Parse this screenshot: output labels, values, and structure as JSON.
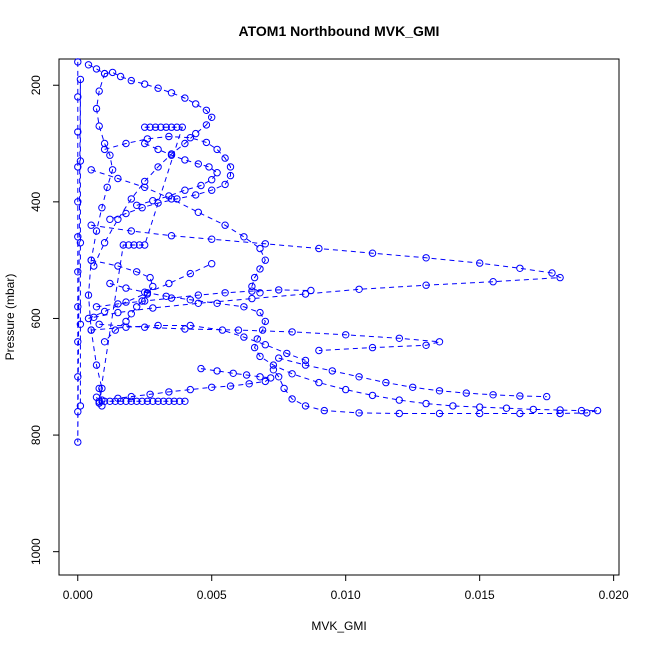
{
  "chart_data": {
    "type": "scatter",
    "title": "ATOM1 Northbound MVK_GMI",
    "xlabel": "MVK_GMI",
    "ylabel": "Pressure (mbar)",
    "xlim": [
      -0.0007,
      0.0202
    ],
    "ylim": [
      1040,
      155
    ],
    "y_reversed": true,
    "grid": false,
    "legend": "none",
    "color": "#0000ff",
    "x_ticks": [
      0.0,
      0.005,
      0.01,
      0.015,
      0.02
    ],
    "x_tick_labels": [
      "0.000",
      "0.005",
      "0.010",
      "0.015",
      "0.020"
    ],
    "y_ticks": [
      200,
      400,
      600,
      800,
      1000
    ],
    "y_tick_labels": [
      "200",
      "400",
      "600",
      "800",
      "1000"
    ],
    "series": [
      {
        "points": [
          [
            0.0,
            160
          ],
          [
            0.0,
            220
          ],
          [
            0.0,
            280
          ],
          [
            0.0,
            340
          ],
          [
            0.0,
            400
          ],
          [
            0.0,
            460
          ],
          [
            0.0,
            520
          ],
          [
            0.0,
            580
          ],
          [
            0.0,
            640
          ],
          [
            0.0,
            700
          ],
          [
            0.0,
            760
          ],
          [
            0.0,
            812
          ],
          [
            0.0001,
            190
          ],
          [
            0.0001,
            330
          ],
          [
            0.0001,
            470
          ],
          [
            0.0001,
            610
          ],
          [
            0.0001,
            750
          ]
        ]
      },
      {
        "points": [
          [
            0.0004,
            165
          ],
          [
            0.0007,
            172
          ],
          [
            0.001,
            180
          ],
          [
            0.0013,
            178
          ],
          [
            0.0016,
            185
          ],
          [
            0.002,
            192
          ],
          [
            0.0025,
            198
          ],
          [
            0.003,
            205
          ],
          [
            0.0035,
            213
          ],
          [
            0.004,
            222
          ],
          [
            0.0044,
            232
          ],
          [
            0.0048,
            243
          ],
          [
            0.005,
            255
          ],
          [
            0.0048,
            268
          ],
          [
            0.0044,
            283
          ],
          [
            0.004,
            300
          ],
          [
            0.0035,
            318
          ],
          [
            0.003,
            340
          ],
          [
            0.0025,
            365
          ],
          [
            0.002,
            395
          ],
          [
            0.0015,
            430
          ],
          [
            0.001,
            470
          ],
          [
            0.0006,
            510
          ]
        ]
      },
      {
        "points": [
          [
            0.001,
            180
          ],
          [
            0.0008,
            210
          ],
          [
            0.0007,
            240
          ],
          [
            0.0008,
            270
          ],
          [
            0.001,
            300
          ],
          [
            0.0012,
            320
          ],
          [
            0.0013,
            345
          ],
          [
            0.0011,
            375
          ],
          [
            0.0009,
            410
          ],
          [
            0.0007,
            450
          ],
          [
            0.0005,
            500
          ],
          [
            0.0004,
            560
          ],
          [
            0.0005,
            620
          ],
          [
            0.0007,
            680
          ],
          [
            0.0009,
            720
          ],
          [
            0.0008,
            745
          ]
        ]
      },
      {
        "points": [
          [
            0.0025,
            272
          ],
          [
            0.0027,
            272
          ],
          [
            0.0029,
            272
          ],
          [
            0.0031,
            272
          ],
          [
            0.0033,
            272
          ],
          [
            0.0035,
            272
          ],
          [
            0.0037,
            272
          ],
          [
            0.0039,
            272
          ],
          [
            0.0025,
            474
          ],
          [
            0.0023,
            474
          ],
          [
            0.0021,
            474
          ],
          [
            0.0019,
            474
          ],
          [
            0.0017,
            474
          ],
          [
            0.0008,
            742
          ],
          [
            0.001,
            742
          ],
          [
            0.0012,
            742
          ],
          [
            0.0014,
            742
          ],
          [
            0.0016,
            742
          ],
          [
            0.0018,
            742
          ],
          [
            0.002,
            742
          ],
          [
            0.0022,
            742
          ],
          [
            0.0024,
            742
          ],
          [
            0.0026,
            742
          ],
          [
            0.0028,
            742
          ],
          [
            0.003,
            742
          ],
          [
            0.0032,
            742
          ],
          [
            0.0034,
            742
          ],
          [
            0.0036,
            742
          ],
          [
            0.0038,
            742
          ],
          [
            0.004,
            742
          ]
        ]
      },
      {
        "points": [
          [
            0.001,
            310
          ],
          [
            0.0018,
            300
          ],
          [
            0.0026,
            292
          ],
          [
            0.0034,
            288
          ],
          [
            0.0042,
            290
          ],
          [
            0.0048,
            298
          ],
          [
            0.0052,
            310
          ],
          [
            0.0055,
            325
          ],
          [
            0.0057,
            340
          ],
          [
            0.0057,
            355
          ],
          [
            0.0055,
            370
          ],
          [
            0.005,
            380
          ],
          [
            0.0044,
            388
          ],
          [
            0.0037,
            395
          ],
          [
            0.003,
            402
          ],
          [
            0.0024,
            410
          ],
          [
            0.0018,
            420
          ],
          [
            0.0012,
            430
          ]
        ]
      },
      {
        "points": [
          [
            0.0005,
            440
          ],
          [
            0.002,
            450
          ],
          [
            0.0035,
            458
          ],
          [
            0.005,
            464
          ],
          [
            0.007,
            472
          ],
          [
            0.009,
            480
          ],
          [
            0.011,
            488
          ],
          [
            0.013,
            496
          ],
          [
            0.015,
            505
          ],
          [
            0.0165,
            514
          ],
          [
            0.0177,
            522
          ],
          [
            0.018,
            530
          ],
          [
            0.0155,
            537
          ],
          [
            0.013,
            543
          ],
          [
            0.0105,
            550
          ],
          [
            0.0085,
            558
          ],
          [
            0.0065,
            566
          ],
          [
            0.0045,
            574
          ],
          [
            0.0028,
            582
          ],
          [
            0.0015,
            590
          ],
          [
            0.0006,
            598
          ]
        ]
      },
      {
        "points": [
          [
            0.0008,
            610
          ],
          [
            0.0025,
            615
          ],
          [
            0.004,
            618
          ],
          [
            0.006,
            620
          ],
          [
            0.008,
            623
          ],
          [
            0.01,
            628
          ],
          [
            0.012,
            634
          ],
          [
            0.0135,
            640
          ],
          [
            0.013,
            646
          ],
          [
            0.011,
            650
          ],
          [
            0.009,
            655
          ]
        ]
      },
      {
        "points": [
          [
            0.0012,
            540
          ],
          [
            0.0018,
            548
          ],
          [
            0.0025,
            555
          ],
          [
            0.0033,
            562
          ],
          [
            0.0042,
            568
          ],
          [
            0.0052,
            574
          ],
          [
            0.0062,
            580
          ],
          [
            0.0068,
            590
          ],
          [
            0.007,
            605
          ],
          [
            0.0069,
            620
          ],
          [
            0.0067,
            635
          ],
          [
            0.0066,
            650
          ],
          [
            0.0068,
            665
          ],
          [
            0.0073,
            680
          ],
          [
            0.008,
            695
          ],
          [
            0.009,
            710
          ],
          [
            0.01,
            722
          ],
          [
            0.011,
            732
          ],
          [
            0.012,
            740
          ],
          [
            0.013,
            746
          ],
          [
            0.014,
            750
          ],
          [
            0.015,
            752
          ],
          [
            0.016,
            754
          ],
          [
            0.017,
            756
          ],
          [
            0.018,
            757
          ],
          [
            0.0188,
            758
          ],
          [
            0.0194,
            758
          ],
          [
            0.019,
            762
          ],
          [
            0.018,
            763
          ],
          [
            0.0165,
            763
          ],
          [
            0.015,
            763
          ],
          [
            0.0135,
            763
          ],
          [
            0.012,
            763
          ],
          [
            0.0105,
            762
          ],
          [
            0.0092,
            758
          ],
          [
            0.0085,
            750
          ],
          [
            0.008,
            738
          ],
          [
            0.0077,
            720
          ],
          [
            0.0075,
            700
          ],
          [
            0.0073,
            688
          ]
        ]
      },
      {
        "points": [
          [
            0.0007,
            580
          ],
          [
            0.0015,
            575
          ],
          [
            0.0025,
            570
          ],
          [
            0.0035,
            565
          ],
          [
            0.0045,
            560
          ],
          [
            0.0055,
            556
          ],
          [
            0.0065,
            553
          ],
          [
            0.0075,
            551
          ],
          [
            0.0087,
            552
          ]
        ]
      },
      {
        "points": [
          [
            0.0046,
            686
          ],
          [
            0.0052,
            690
          ],
          [
            0.0058,
            694
          ],
          [
            0.0063,
            697
          ],
          [
            0.0068,
            700
          ],
          [
            0.0072,
            702
          ],
          [
            0.007,
            708
          ],
          [
            0.0064,
            712
          ],
          [
            0.0057,
            716
          ],
          [
            0.005,
            718
          ],
          [
            0.0042,
            722
          ],
          [
            0.0034,
            726
          ],
          [
            0.0027,
            730
          ],
          [
            0.002,
            734
          ],
          [
            0.0015,
            737
          ]
        ]
      },
      {
        "points": [
          [
            0.0075,
            668
          ],
          [
            0.0085,
            680
          ],
          [
            0.0095,
            690
          ],
          [
            0.0105,
            700
          ],
          [
            0.0115,
            710
          ],
          [
            0.0125,
            718
          ],
          [
            0.0135,
            724
          ],
          [
            0.0145,
            728
          ],
          [
            0.0155,
            731
          ],
          [
            0.0165,
            733
          ],
          [
            0.0175,
            734
          ]
        ]
      },
      {
        "points": [
          [
            0.0005,
            620
          ],
          [
            0.0018,
            615
          ],
          [
            0.003,
            612
          ],
          [
            0.0042,
            612
          ],
          [
            0.0054,
            620
          ],
          [
            0.0062,
            632
          ],
          [
            0.007,
            645
          ],
          [
            0.0078,
            660
          ],
          [
            0.0085,
            672
          ]
        ]
      },
      {
        "points": [
          [
            0.0005,
            500
          ],
          [
            0.0015,
            510
          ],
          [
            0.0022,
            520
          ],
          [
            0.0027,
            530
          ],
          [
            0.0028,
            545
          ],
          [
            0.0026,
            558
          ],
          [
            0.0024,
            570
          ],
          [
            0.0022,
            580
          ],
          [
            0.002,
            592
          ],
          [
            0.0018,
            605
          ],
          [
            0.0014,
            620
          ],
          [
            0.001,
            640
          ]
        ]
      },
      {
        "points": [
          [
            0.0005,
            345
          ],
          [
            0.0015,
            360
          ],
          [
            0.0025,
            375
          ],
          [
            0.0035,
            395
          ],
          [
            0.0045,
            418
          ],
          [
            0.0055,
            440
          ],
          [
            0.0062,
            460
          ],
          [
            0.0068,
            480
          ],
          [
            0.007,
            500
          ],
          [
            0.0068,
            515
          ],
          [
            0.0066,
            530
          ],
          [
            0.0065,
            545
          ],
          [
            0.0068,
            556
          ]
        ]
      },
      {
        "points": [
          [
            0.0004,
            600
          ],
          [
            0.001,
            588
          ],
          [
            0.0018,
            572
          ],
          [
            0.0026,
            556
          ],
          [
            0.0034,
            540
          ],
          [
            0.0042,
            523
          ],
          [
            0.005,
            506
          ]
        ]
      },
      {
        "points": [
          [
            0.0025,
            300
          ],
          [
            0.003,
            310
          ],
          [
            0.0035,
            320
          ],
          [
            0.004,
            328
          ],
          [
            0.0045,
            335
          ],
          [
            0.0049,
            340
          ],
          [
            0.0052,
            350
          ],
          [
            0.005,
            362
          ],
          [
            0.0046,
            372
          ],
          [
            0.004,
            380
          ],
          [
            0.0034,
            390
          ],
          [
            0.0028,
            398
          ],
          [
            0.0022,
            406
          ]
        ]
      },
      {
        "points": [
          [
            0.0008,
            720
          ],
          [
            0.0009,
            740
          ],
          [
            0.0009,
            750
          ],
          [
            0.0008,
            745
          ],
          [
            0.0007,
            735
          ]
        ]
      }
    ]
  }
}
